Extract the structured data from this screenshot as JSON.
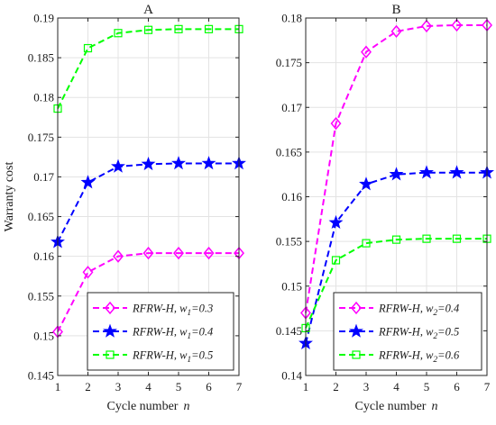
{
  "chart_data": [
    {
      "type": "line",
      "title": "A",
      "xlabel": "Cycle number",
      "xlabel_var": "n",
      "ylabel": "Warranty cost",
      "x": [
        1,
        2,
        3,
        4,
        5,
        6,
        7
      ],
      "xlim": [
        1,
        7
      ],
      "ylim": [
        0.145,
        0.19
      ],
      "xticks": [
        "1",
        "2",
        "3",
        "4",
        "5",
        "6",
        "7"
      ],
      "yticks": [
        "0.145",
        "0.15",
        "0.155",
        "0.16",
        "0.165",
        "0.17",
        "0.175",
        "0.18",
        "0.185",
        "0.19"
      ],
      "grid": true,
      "legend_position": "bottom-right",
      "series": [
        {
          "name": "RFRW-H, w1=0.3",
          "label_prefix": "RFRW-H, w",
          "label_sub": "1",
          "label_suffix": "=0.3",
          "color": "#ff00ff",
          "marker": "diamond",
          "values": [
            0.1505,
            0.158,
            0.16,
            0.1604,
            0.1604,
            0.1604,
            0.1604
          ]
        },
        {
          "name": "RFRW-H, w1=0.4",
          "label_prefix": "RFRW-H, w",
          "label_sub": "1",
          "label_suffix": "=0.4",
          "color": "#0000ff",
          "marker": "star",
          "values": [
            0.1618,
            0.1693,
            0.1713,
            0.1716,
            0.1717,
            0.1717,
            0.1717
          ]
        },
        {
          "name": "RFRW-H, w1=0.5",
          "label_prefix": "RFRW-H, w",
          "label_sub": "1",
          "label_suffix": "=0.5",
          "color": "#00ff00",
          "marker": "square",
          "values": [
            0.1786,
            0.1862,
            0.1881,
            0.1885,
            0.1886,
            0.1886,
            0.1886
          ]
        }
      ]
    },
    {
      "type": "line",
      "title": "B",
      "xlabel": "Cycle number",
      "xlabel_var": "n",
      "ylabel": "",
      "x": [
        1,
        2,
        3,
        4,
        5,
        6,
        7
      ],
      "xlim": [
        1,
        7
      ],
      "ylim": [
        0.14,
        0.18
      ],
      "xticks": [
        "1",
        "2",
        "3",
        "4",
        "5",
        "6",
        "7"
      ],
      "yticks": [
        "0.14",
        "0.145",
        "0.15",
        "0.155",
        "0.16",
        "0.165",
        "0.17",
        "0.175",
        "0.18"
      ],
      "grid": true,
      "legend_position": "bottom-right",
      "series": [
        {
          "name": "RFRW-H, w2=0.4",
          "label_prefix": "RFRW-H, w",
          "label_sub": "2",
          "label_suffix": "=0.4",
          "color": "#ff00ff",
          "marker": "diamond",
          "values": [
            0.147,
            0.1682,
            0.1762,
            0.1785,
            0.1791,
            0.1792,
            0.1792
          ]
        },
        {
          "name": "RFRW-H, w2=0.5",
          "label_prefix": "RFRW-H, w",
          "label_sub": "2",
          "label_suffix": "=0.5",
          "color": "#0000ff",
          "marker": "star",
          "values": [
            0.1436,
            0.1571,
            0.1614,
            0.1625,
            0.1627,
            0.1627,
            0.1627
          ]
        },
        {
          "name": "RFRW-H, w2=0.6",
          "label_prefix": "RFRW-H, w",
          "label_sub": "2",
          "label_suffix": "=0.6",
          "color": "#00ff00",
          "marker": "square",
          "values": [
            0.1453,
            0.1529,
            0.1548,
            0.1552,
            0.1553,
            0.1553,
            0.1553
          ]
        }
      ]
    }
  ]
}
